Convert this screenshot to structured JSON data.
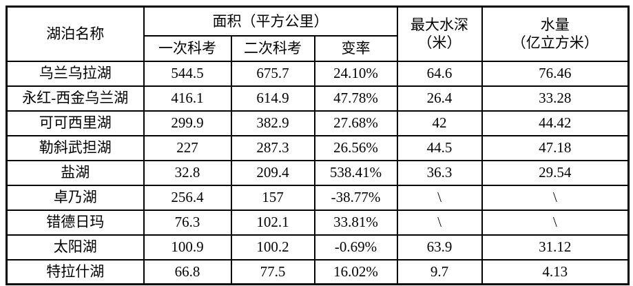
{
  "table": {
    "header": {
      "lake_name": "湖泊名称",
      "area_group": "面积（平方公里）",
      "sub": [
        "一次科考",
        "二次科考",
        "变率"
      ],
      "max_depth_line1": "最大水深",
      "max_depth_line2": "（米）",
      "volume_line1": "水量",
      "volume_line2": "（亿立方米）"
    },
    "rows": [
      {
        "name": "乌兰乌拉湖",
        "survey1": "544.5",
        "survey2": "675.7",
        "change": "24.10%",
        "depth": "64.6",
        "volume": "76.46"
      },
      {
        "name": "永红-西金乌兰湖",
        "survey1": "416.1",
        "survey2": "614.9",
        "change": "47.78%",
        "depth": "26.4",
        "volume": "33.28"
      },
      {
        "name": "可可西里湖",
        "survey1": "299.9",
        "survey2": "382.9",
        "change": "27.68%",
        "depth": "42",
        "volume": "44.42"
      },
      {
        "name": "勒斜武担湖",
        "survey1": "227",
        "survey2": "287.3",
        "change": "26.56%",
        "depth": "44.5",
        "volume": "47.18"
      },
      {
        "name": "盐湖",
        "survey1": "32.8",
        "survey2": "209.4",
        "change": "538.41%",
        "depth": "36.3",
        "volume": "29.54"
      },
      {
        "name": "卓乃湖",
        "survey1": "256.4",
        "survey2": "157",
        "change": "-38.77%",
        "depth": "\\",
        "volume": "\\"
      },
      {
        "name": "错德日玛",
        "survey1": "76.3",
        "survey2": "102.1",
        "change": "33.81%",
        "depth": "\\",
        "volume": "\\"
      },
      {
        "name": "太阳湖",
        "survey1": "100.9",
        "survey2": "100.2",
        "change": "-0.69%",
        "depth": "63.9",
        "volume": "31.12"
      },
      {
        "name": "特拉什湖",
        "survey1": "66.8",
        "survey2": "77.5",
        "change": "16.02%",
        "depth": "9.7",
        "volume": "4.13"
      }
    ]
  },
  "colors": {
    "background": "#ffffff",
    "text": "#000000",
    "border": "#000000"
  }
}
